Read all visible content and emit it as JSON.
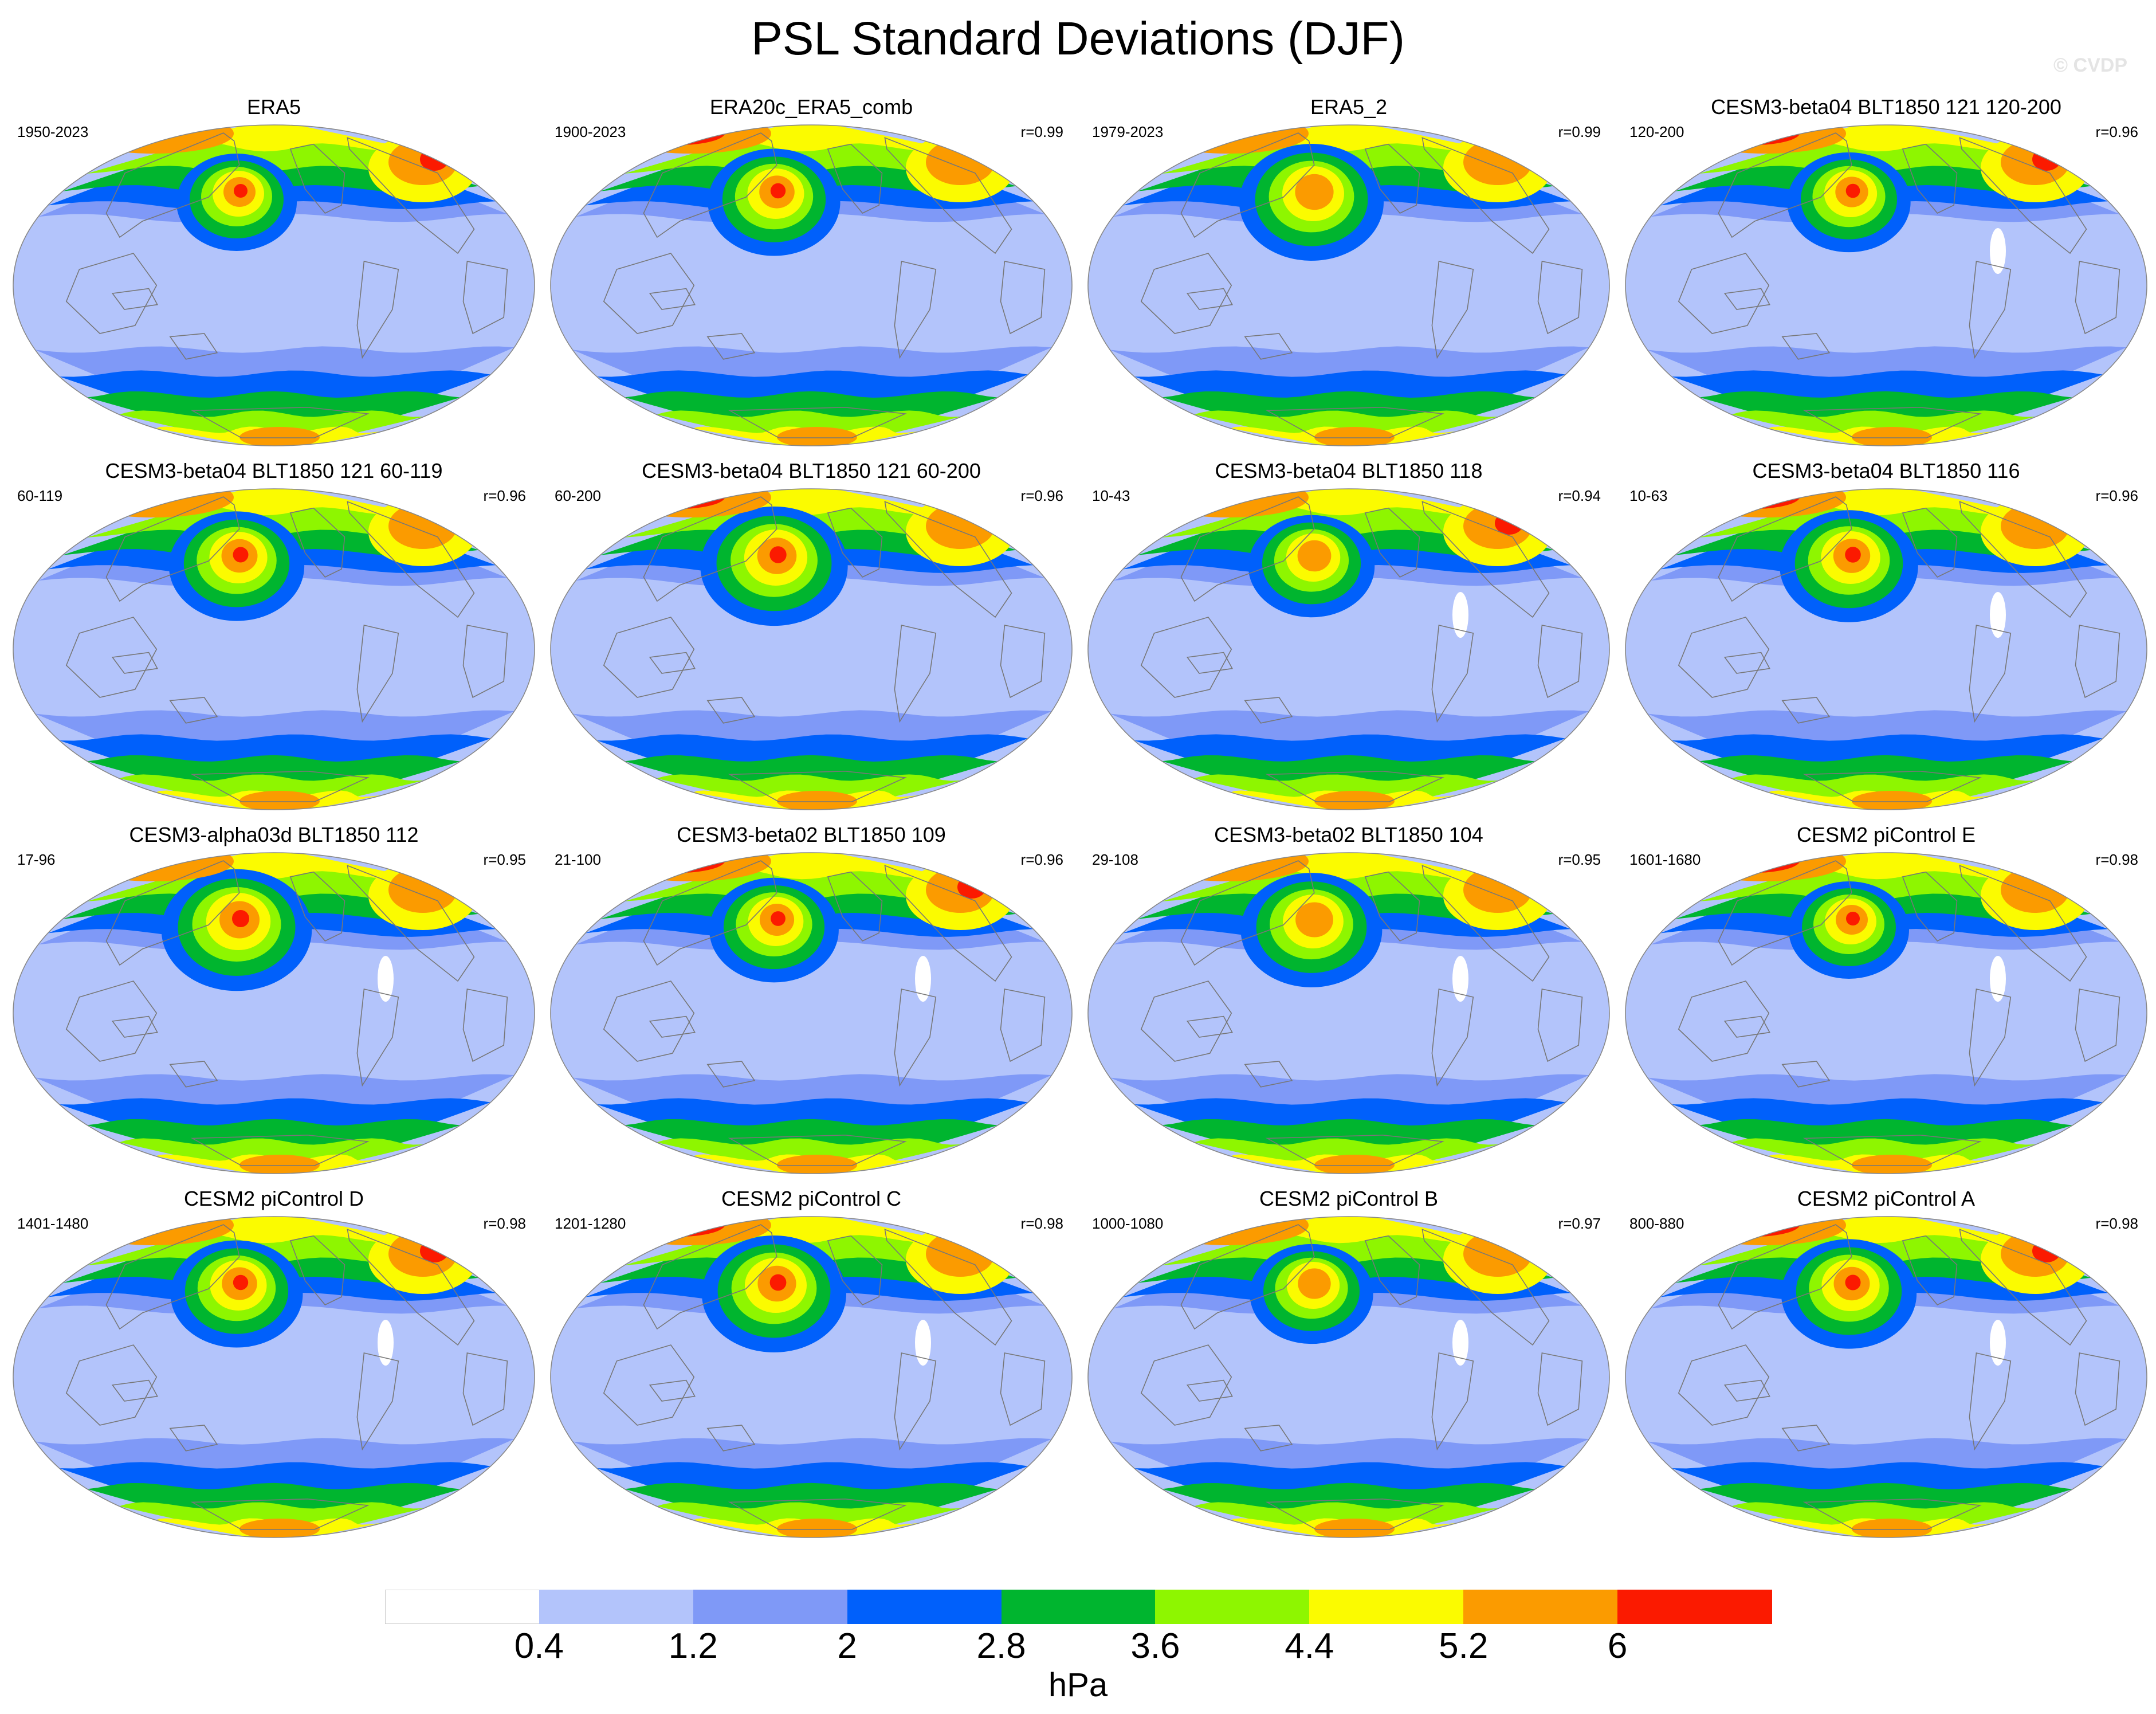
{
  "title": "PSL Standard Deviations (DJF)",
  "watermark": "© CVDP",
  "colors": {
    "levels": [
      "#ffffff",
      "#b3c4fb",
      "#7f99f7",
      "#0060fb",
      "#00b52f",
      "#8ef600",
      "#fbfb00",
      "#fb9b00",
      "#fb1a00"
    ],
    "coast": "#777777",
    "outline": "#888888"
  },
  "panels": [
    {
      "title": "ERA5",
      "years": "1950-2023",
      "r": ""
    },
    {
      "title": "ERA20c_ERA5_comb",
      "years": "1900-2023",
      "r": "r=0.99"
    },
    {
      "title": "ERA5_2",
      "years": "1979-2023",
      "r": "r=0.99"
    },
    {
      "title": "CESM3-beta04 BLT1850 121 120-200",
      "years": "120-200",
      "r": "r=0.96"
    },
    {
      "title": "CESM3-beta04 BLT1850 121 60-119",
      "years": "60-119",
      "r": "r=0.96"
    },
    {
      "title": "CESM3-beta04 BLT1850 121 60-200",
      "years": "60-200",
      "r": "r=0.96"
    },
    {
      "title": "CESM3-beta04 BLT1850 118",
      "years": "10-43",
      "r": "r=0.94"
    },
    {
      "title": "CESM3-beta04 BLT1850 116",
      "years": "10-63",
      "r": "r=0.96"
    },
    {
      "title": "CESM3-alpha03d BLT1850 112",
      "years": "17-96",
      "r": "r=0.95"
    },
    {
      "title": "CESM3-beta02 BLT1850 109",
      "years": "21-100",
      "r": "r=0.96"
    },
    {
      "title": "CESM3-beta02 BLT1850 104",
      "years": "29-108",
      "r": "r=0.95"
    },
    {
      "title": "CESM2 piControl E",
      "years": "1601-1680",
      "r": "r=0.98"
    },
    {
      "title": "CESM2 piControl D",
      "years": "1401-1480",
      "r": "r=0.98"
    },
    {
      "title": "CESM2 piControl C",
      "years": "1201-1280",
      "r": "r=0.98"
    },
    {
      "title": "CESM2 piControl B",
      "years": "1000-1080",
      "r": "r=0.97"
    },
    {
      "title": "CESM2 piControl A",
      "years": "800-880",
      "r": "r=0.98"
    }
  ],
  "colorbar": {
    "labels": [
      "0.4",
      "1.2",
      "2",
      "2.8",
      "3.6",
      "4.4",
      "5.2",
      "6"
    ],
    "units": "hPa"
  }
}
